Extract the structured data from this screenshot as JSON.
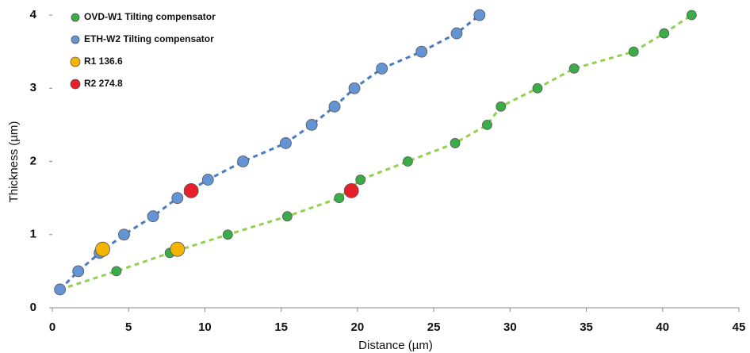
{
  "chart_data": {
    "type": "scatter",
    "x_label": "Distance (µm)",
    "y_label": "Thickness (µm)",
    "xlim": [
      0,
      45
    ],
    "xticks": [
      0,
      5,
      10,
      15,
      20,
      25,
      30,
      35,
      40,
      45
    ],
    "ylim": [
      0,
      4
    ],
    "yticks": [
      0,
      1,
      2,
      3,
      4
    ],
    "legend": "top-left",
    "series": [
      {
        "name": "OVD-W1 Tilting compensator",
        "color": "#3aad48",
        "trendline": true,
        "trendline_color": "#92d050",
        "marker_size": 6,
        "x": [
          0.5,
          4.2,
          7.7,
          11.5,
          15.4,
          18.8,
          20.2,
          23.3,
          26.4,
          28.5,
          29.4,
          31.8,
          34.2,
          38.1,
          40.1,
          41.9
        ],
        "values": [
          0.25,
          0.5,
          0.75,
          1.0,
          1.25,
          1.5,
          1.75,
          2.0,
          2.25,
          2.5,
          2.75,
          3.0,
          3.27,
          3.5,
          3.75,
          4.0
        ]
      },
      {
        "name": "ETH-W2 Tilting compensator",
        "color": "#6494d4",
        "trendline": true,
        "trendline_color": "#4a7cc2",
        "marker_size": 7,
        "x": [
          0.5,
          1.7,
          3.1,
          4.7,
          6.6,
          8.2,
          10.2,
          12.5,
          15.3,
          17.0,
          18.5,
          19.8,
          21.6,
          24.2,
          26.5,
          28.0
        ],
        "values": [
          0.25,
          0.5,
          0.75,
          1.0,
          1.25,
          1.5,
          1.75,
          2.0,
          2.25,
          2.5,
          2.75,
          3.0,
          3.27,
          3.5,
          3.75,
          4.0
        ]
      },
      {
        "name": "R1 136.6",
        "color": "#f5b400",
        "trendline": false,
        "marker_size": 9,
        "x": [
          3.3,
          8.2
        ],
        "values": [
          0.8,
          0.8
        ]
      },
      {
        "name": "R2 274.8",
        "color": "#e5202a",
        "trendline": false,
        "marker_size": 9,
        "x": [
          9.1,
          19.6
        ],
        "values": [
          1.6,
          1.6
        ]
      }
    ]
  }
}
